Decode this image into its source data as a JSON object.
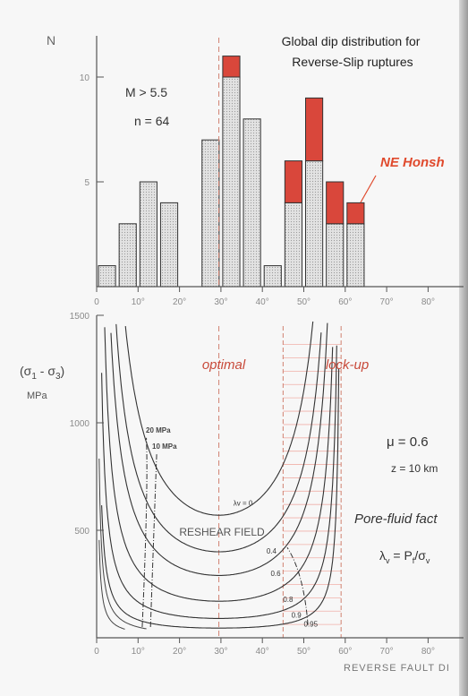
{
  "chart_data": [
    {
      "type": "bar",
      "title": "Global dip distribution for",
      "subtitle": "Reverse-Slip ruptures",
      "ylabel": "N",
      "ylim": [
        0,
        12
      ],
      "y_ticks": [
        "5",
        "10"
      ],
      "x_ticks": [
        "0",
        "10°",
        "20°",
        "30°",
        "40°",
        "50°",
        "60°",
        "70°",
        "80°"
      ],
      "xlim": [
        0,
        90
      ],
      "annotations": {
        "magnitude": "M > 5.5",
        "count": "n = 64",
        "highlight_label": "NE Honsh"
      },
      "colors": {
        "gray": "#dcdcdc",
        "red": "#d9473b",
        "label_red": "#e04a2d"
      },
      "bins_deg": [
        0,
        5,
        10,
        15,
        25,
        30,
        35,
        40,
        45,
        50,
        55,
        60
      ],
      "series": [
        {
          "values": [
            1,
            3,
            5,
            4,
            7,
            10,
            8,
            1,
            4,
            6,
            3,
            3
          ]
        },
        {
          "values": [
            0,
            0,
            0,
            0,
            0,
            1,
            0,
            0,
            2,
            3,
            2,
            1
          ]
        }
      ]
    },
    {
      "type": "line",
      "ylabel": "(σ1 - σ3)",
      "yunit": "MPa",
      "xlabel": "REVERSE FAULT DI",
      "ylim": [
        0,
        1500
      ],
      "xlim": [
        0,
        90
      ],
      "y_ticks": [
        "500",
        "1000",
        "1500"
      ],
      "x_ticks": [
        "0",
        "10°",
        "20°",
        "30°",
        "40°",
        "50°",
        "60°",
        "70°",
        "80°"
      ],
      "annotations": {
        "optimal": "optimal",
        "lockup": "lock-up",
        "mu": "μ = 0.6",
        "depth": "z = 10 km",
        "pore_fluid": "Pore-fluid fact",
        "lambda_def": "λv = Pf/σv",
        "reshear": "RESHEAR FIELD",
        "mpa20": "20 MPa",
        "mpa10": "10 MPa"
      },
      "optimal_angle": 29.5,
      "lockup_range": [
        45,
        59
      ],
      "series": [
        {
          "name": "λv = 0",
          "min_stress": 570
        },
        {
          "name": "0.4",
          "min_stress": 400
        },
        {
          "name": "0.6",
          "min_stress": 290
        },
        {
          "name": "0.8",
          "min_stress": 170
        },
        {
          "name": "0.9",
          "min_stress": 90
        },
        {
          "name": "0.95",
          "min_stress": 45
        }
      ]
    }
  ]
}
